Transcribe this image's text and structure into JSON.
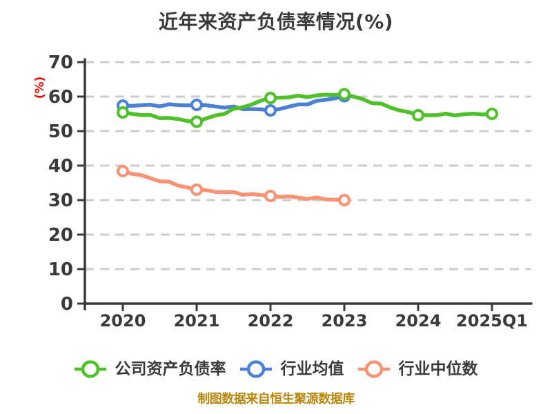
{
  "title": "近年来资产负债率情况(%)",
  "y_axis_label": "(%)",
  "caption": "制图数据来自恒生聚源数据库",
  "colors": {
    "text": "#3a3a3a",
    "grid": "#cccccc",
    "axis": "#3a3a3a",
    "accent_red": "#ff0000",
    "caption_gold": "#b8860b",
    "company_green": "#4fc128",
    "industry_blue": "#4a80d8",
    "median_salmon": "#fa9273",
    "marker_fill": "#ffffff"
  },
  "chart_data": {
    "type": "line",
    "style": "xkcd-sketch",
    "title": "近年来资产负债率情况(%)",
    "ylabel": "(%)",
    "xlabel": "",
    "x": [
      "2020",
      "2021",
      "2022",
      "2023",
      "2024",
      "2025Q1"
    ],
    "yticks": [
      0,
      10,
      20,
      30,
      40,
      50,
      60,
      70
    ],
    "ylim": [
      0,
      70
    ],
    "grid": "horizontal-dashed",
    "legend_position": "bottom-center",
    "series": [
      {
        "key": "company",
        "name": "公司资产负债率",
        "color": "#4fc128",
        "values": [
          55.4,
          52.7,
          59.6,
          60.7,
          54.6,
          55.0
        ]
      },
      {
        "key": "industry-avg",
        "name": "行业均值",
        "color": "#4a80d8",
        "values": [
          57.4,
          57.6,
          56.0,
          60.1,
          null,
          null
        ]
      },
      {
        "key": "industry-median",
        "name": "行业中位数",
        "color": "#fa9273",
        "values": [
          38.4,
          33.0,
          31.2,
          30.0,
          null,
          null
        ]
      }
    ]
  }
}
